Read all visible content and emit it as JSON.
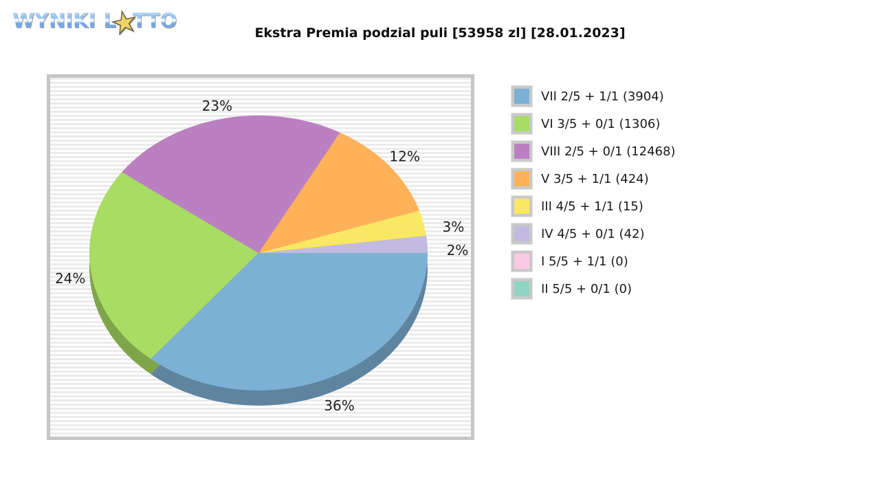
{
  "logo": {
    "word1": "WYNIKI",
    "word2_prefix": "L",
    "word2_suffix": "TTO"
  },
  "icons": {
    "star": "★"
  },
  "chart_data": {
    "type": "pie",
    "title": "Ekstra Premia podzial puli [53958 zl] [28.01.2023]",
    "pool": "53958 zl",
    "date": "28.01.2023",
    "style": "3d-pie",
    "legend_position": "right",
    "label_format": "percent",
    "slices": [
      {
        "legend": "IV 4/5 + 0/1 (42)",
        "percent": 2,
        "label": "2%",
        "color": "#c2bbdf"
      },
      {
        "legend": "III 4/5 + 1/1 (15)",
        "percent": 3,
        "label": "3%",
        "color": "#f9e863"
      },
      {
        "legend": "V 3/5 + 1/1 (424)",
        "percent": 12,
        "label": "12%",
        "color": "#fdb25a"
      },
      {
        "legend": "VIII 2/5 + 0/1 (12468)",
        "percent": 23,
        "label": "23%",
        "color": "#bb80c1"
      },
      {
        "legend": "VI 3/5 + 0/1 (1306)",
        "percent": 24,
        "label": "24%",
        "color": "#a9dc62"
      },
      {
        "legend": "VII 2/5 + 1/1 (3904)",
        "percent": 36,
        "label": "36%",
        "color": "#7db0d5"
      }
    ],
    "legend": [
      {
        "label": "VII 2/5 + 1/1 (3904)",
        "color": "#7db0d5"
      },
      {
        "label": "VI 3/5 + 0/1 (1306)",
        "color": "#a9dc62"
      },
      {
        "label": "VIII 2/5 + 0/1 (12468)",
        "color": "#bb80c1"
      },
      {
        "label": "V 3/5 + 1/1 (424)",
        "color": "#fdb25a"
      },
      {
        "label": "III 4/5 + 1/1 (15)",
        "color": "#f9e863"
      },
      {
        "label": "IV 4/5 + 0/1 (42)",
        "color": "#c2bbdf"
      },
      {
        "label": "I 5/5 + 1/1 (0)",
        "color": "#fac9e4"
      },
      {
        "label": "II 5/5 + 0/1 (0)",
        "color": "#90d5c3"
      }
    ]
  }
}
